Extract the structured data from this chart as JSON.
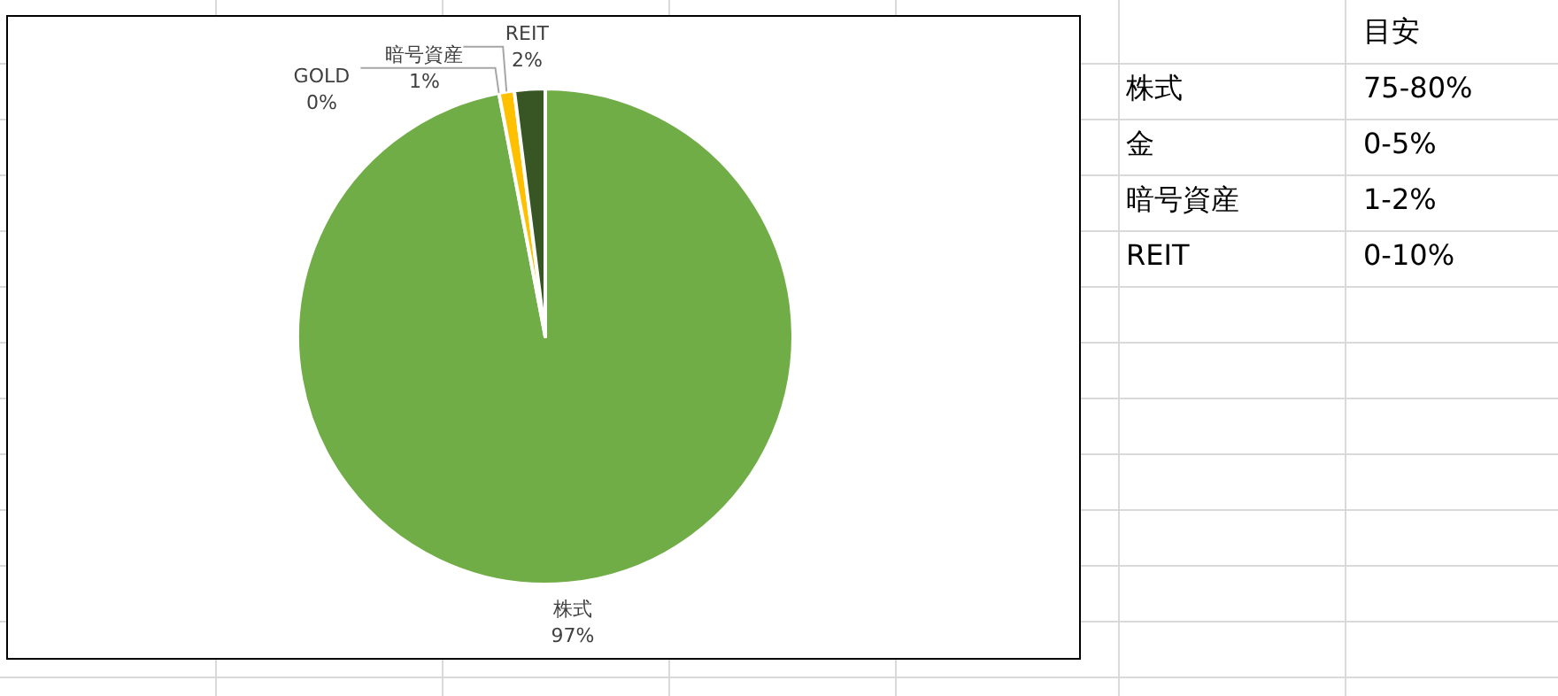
{
  "chart_data": [
    {
      "type": "pie",
      "categories": [
        "株式",
        "GOLD",
        "暗号資産",
        "REIT"
      ],
      "values": [
        97,
        0,
        1,
        2
      ],
      "colors": [
        "#70ad47",
        "#a5a5a5",
        "#ffc000",
        "#375623"
      ],
      "value_labels": [
        "97%",
        "0%",
        "1%",
        "2%"
      ]
    },
    {
      "type": "other",
      "title": "目安",
      "categories": [
        "株式",
        "金",
        "暗号資産",
        "REIT"
      ],
      "value_labels": [
        "75-80%",
        "0-5%",
        "1-2%",
        "0-10%"
      ]
    }
  ]
}
